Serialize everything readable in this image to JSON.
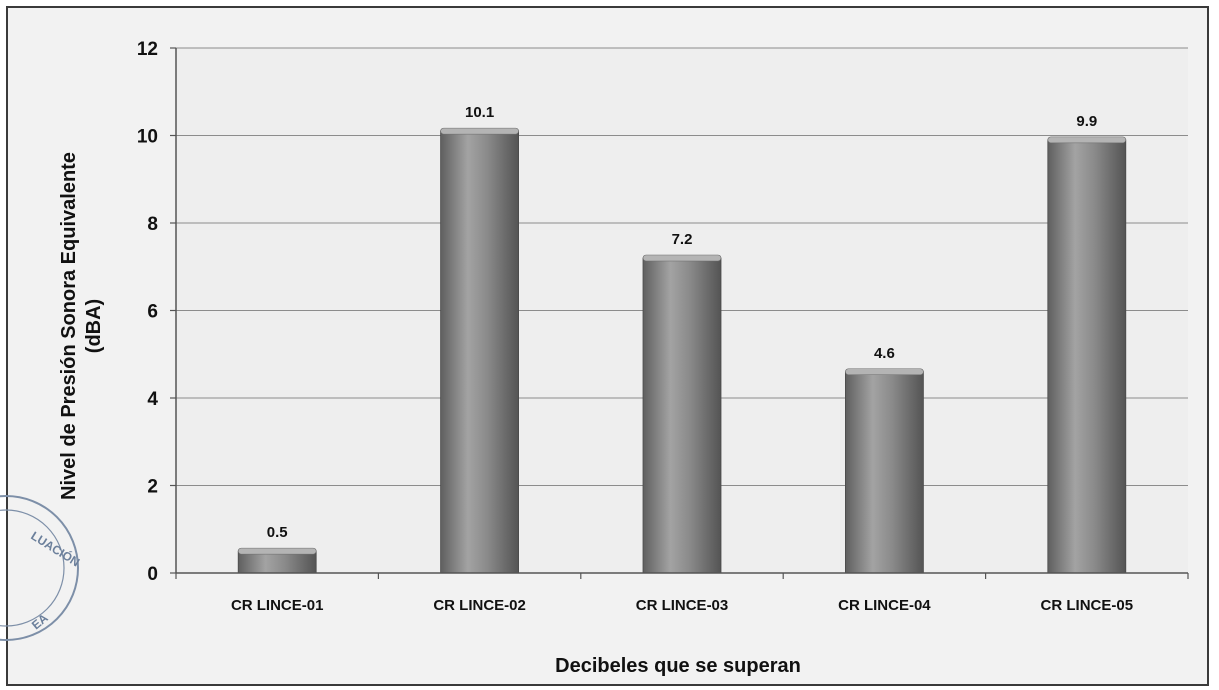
{
  "chart_data": {
    "type": "bar",
    "categories": [
      "CR LINCE-01",
      "CR LINCE-02",
      "CR LINCE-03",
      "CR LINCE-04",
      "CR LINCE-05"
    ],
    "values": [
      0.5,
      10.1,
      7.2,
      4.6,
      9.9
    ],
    "data_labels": [
      "0.5",
      "10.1",
      "7.2",
      "4.6",
      "9.9"
    ],
    "title": "",
    "xlabel": "Decibeles que se superan",
    "ylabel_line1": "Nivel de Presión Sonora Equivalente",
    "ylabel_line2": "(dBA)",
    "ylim": [
      0,
      12
    ],
    "yticks": [
      0,
      2,
      4,
      6,
      8,
      10,
      12
    ],
    "grid": true,
    "legend": "none",
    "colors": {
      "bar": "#8a8a8a",
      "bar_dark": "#5f5f5f",
      "bar_light": "#b4b4b4",
      "grid": "#8c8c8c",
      "axis": "#555555",
      "plot_bg": "#eeeeee"
    }
  },
  "stamp": {
    "visible_text_1": "LUACIÓN",
    "visible_text_2": "EA"
  }
}
